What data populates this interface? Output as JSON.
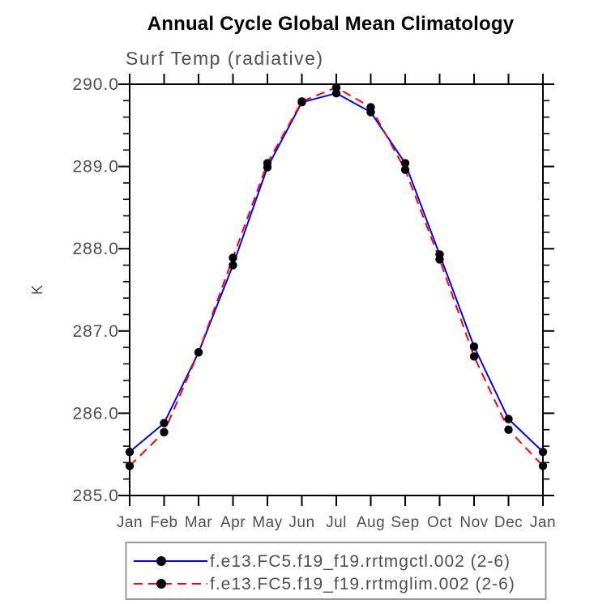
{
  "chart_data": {
    "type": "line",
    "title": "Annual Cycle Global Mean Climatology",
    "subtitle": "Surf Temp (radiative)",
    "xlabel": "",
    "ylabel": "K",
    "categories": [
      "Jan",
      "Feb",
      "Mar",
      "Apr",
      "May",
      "Jun",
      "Jul",
      "Aug",
      "Sep",
      "Oct",
      "Nov",
      "Dec",
      "Jan"
    ],
    "ylim": [
      285.0,
      290.0
    ],
    "ytick_step": 1.0,
    "ytick_minor_step": 0.2,
    "yticks": [
      "285.0",
      "286.0",
      "287.0",
      "288.0",
      "289.0",
      "290.0"
    ],
    "grid": false,
    "legend_position": "bottom",
    "frame_color": "#000000",
    "marker": "filled-circle",
    "marker_color": "#000000",
    "series": [
      {
        "name": "f.e13.FC5.f19_f19.rrtmgctl.002 (2-6)",
        "color": "#0000ff",
        "style": "solid",
        "values": [
          285.53,
          285.88,
          286.74,
          287.8,
          288.99,
          289.78,
          289.89,
          289.66,
          289.04,
          287.93,
          286.81,
          285.93,
          285.53
        ]
      },
      {
        "name": "f.e13.FC5.f19_f19.rrtmglim.002 (2-6)",
        "color": "#ff0000",
        "style": "dashed",
        "values": [
          285.36,
          285.77,
          286.74,
          287.89,
          289.04,
          289.79,
          289.96,
          289.72,
          288.96,
          287.87,
          286.69,
          285.8,
          285.36
        ]
      }
    ]
  }
}
